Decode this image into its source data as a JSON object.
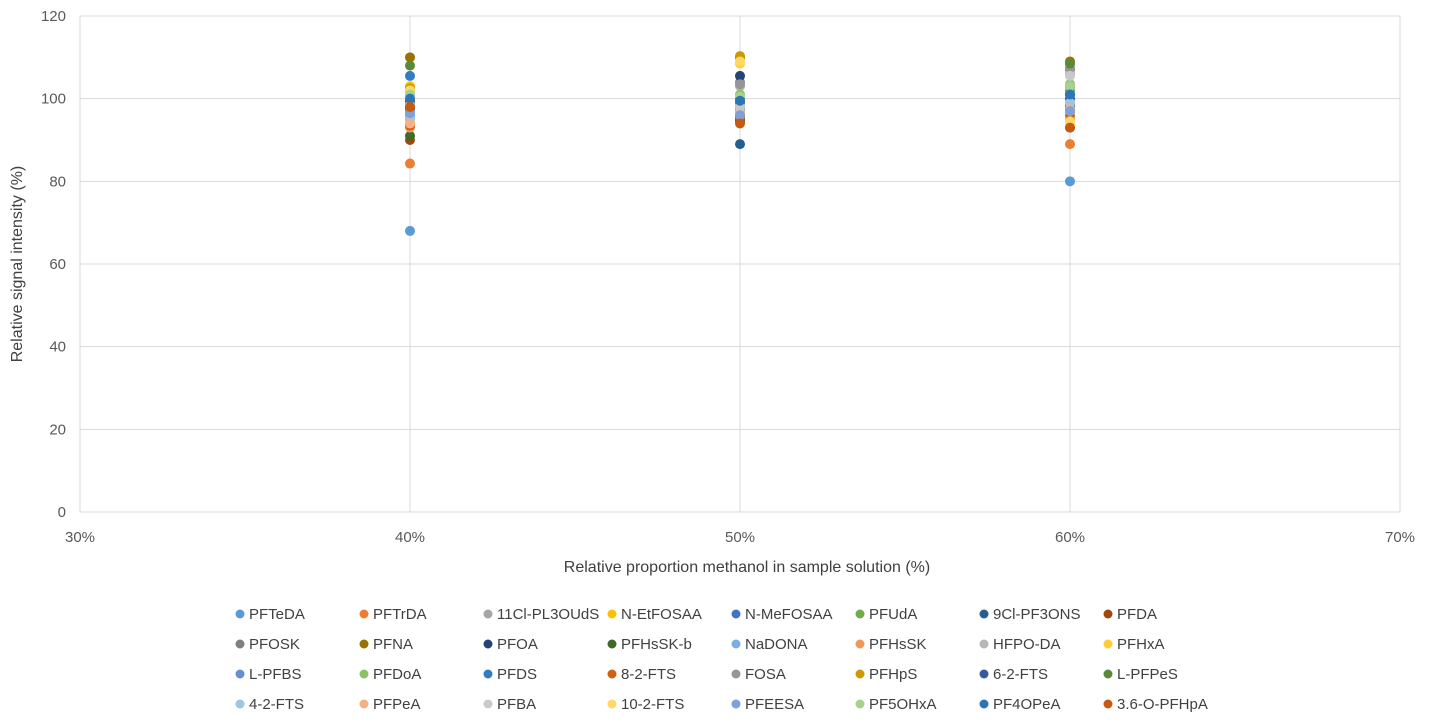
{
  "chart_data": {
    "type": "scatter",
    "title": "",
    "xlabel": "Relative proportion methanol in sample solution (%)",
    "ylabel": "Relative signal intensity (%)",
    "xlim": [
      30,
      70
    ],
    "ylim": [
      0,
      120
    ],
    "x_ticks": [
      30,
      40,
      50,
      60,
      70
    ],
    "x_tick_labels": [
      "30%",
      "40%",
      "50%",
      "60%",
      "70%"
    ],
    "y_ticks": [
      0,
      20,
      40,
      60,
      80,
      100,
      120
    ],
    "y_tick_labels": [
      "0",
      "20",
      "40",
      "60",
      "80",
      "100",
      "120"
    ],
    "grid": "major gridlines on both axes",
    "legend_position": "bottom",
    "x": [
      40,
      50,
      60
    ],
    "series": [
      {
        "name": "PFTeDA",
        "color": "#5B9BD5",
        "values": [
          68,
          97,
          80
        ]
      },
      {
        "name": "PFTrDA",
        "color": "#ED7D31",
        "values": [
          84.3,
          95,
          89
        ]
      },
      {
        "name": "11Cl-PL3OUdS",
        "color": "#A5A5A5",
        "values": [
          96,
          103,
          106
        ]
      },
      {
        "name": "N-EtFOSAA",
        "color": "#FFC000",
        "values": [
          103,
          110,
          103
        ]
      },
      {
        "name": "N-MeFOSAA",
        "color": "#4472C4",
        "values": [
          101,
          99,
          97
        ]
      },
      {
        "name": "PFUdA",
        "color": "#70AD47",
        "values": [
          95,
          100,
          102
        ]
      },
      {
        "name": "9Cl-PF3ONS",
        "color": "#255E91",
        "values": [
          99.5,
          89,
          101
        ]
      },
      {
        "name": "PFDA",
        "color": "#9E480E",
        "values": [
          90,
          94.5,
          93
        ]
      },
      {
        "name": "PFOSK",
        "color": "#7F7F7F",
        "values": [
          98,
          104,
          107
        ]
      },
      {
        "name": "PFNA",
        "color": "#997300",
        "values": [
          110,
          110,
          109
        ]
      },
      {
        "name": "PFOA",
        "color": "#264478",
        "values": [
          97.5,
          105.5,
          101
        ]
      },
      {
        "name": "PFHsSK-b",
        "color": "#43682B",
        "values": [
          91,
          95,
          103
        ]
      },
      {
        "name": "NaDONA",
        "color": "#7CAFDD",
        "values": [
          96,
          98,
          100
        ]
      },
      {
        "name": "PFHsSK",
        "color": "#F1975A",
        "values": [
          93,
          96,
          95
        ]
      },
      {
        "name": "HFPO-DA",
        "color": "#B7B7B7",
        "values": [
          102,
          103,
          106
        ]
      },
      {
        "name": "PFHxA",
        "color": "#FFCD33",
        "values": [
          100,
          108.5,
          94
        ]
      },
      {
        "name": "L-PFBS",
        "color": "#698ED0",
        "values": [
          97,
          96,
          98.5
        ]
      },
      {
        "name": "PFDoA",
        "color": "#8CC168",
        "values": [
          102,
          101,
          103.5
        ]
      },
      {
        "name": "PFDS",
        "color": "#327DC2",
        "values": [
          105.5,
          97.5,
          98
        ]
      },
      {
        "name": "8-2-FTS",
        "color": "#D26012",
        "values": [
          93.5,
          95.5,
          96
        ]
      },
      {
        "name": "FOSA",
        "color": "#969696",
        "values": [
          99,
          103.5,
          107.5
        ]
      },
      {
        "name": "PFHpS",
        "color": "#CC9A00",
        "values": [
          102.5,
          110.3,
          108.5
        ]
      },
      {
        "name": "6-2-FTS",
        "color": "#335AA1",
        "values": [
          99,
          100,
          100
        ]
      },
      {
        "name": "L-PFPeS",
        "color": "#5A8A39",
        "values": [
          108,
          99,
          108.5
        ]
      },
      {
        "name": "4-2-FTS",
        "color": "#9DC3E6",
        "values": [
          95,
          97,
          99
        ]
      },
      {
        "name": "PFPeA",
        "color": "#F4B183",
        "values": [
          94,
          96.5,
          97.5
        ]
      },
      {
        "name": "PFBA",
        "color": "#C9C9C9",
        "values": [
          98.5,
          98,
          105.5
        ]
      },
      {
        "name": "10-2-FTS",
        "color": "#FFD966",
        "values": [
          102,
          109,
          94.5
        ]
      },
      {
        "name": "PFEESA",
        "color": "#7EA1D9",
        "values": [
          96.5,
          96,
          97
        ]
      },
      {
        "name": "PF5OHxA",
        "color": "#A9D18E",
        "values": [
          101,
          100.5,
          103
        ]
      },
      {
        "name": "PF4OPeA",
        "color": "#2E75B6",
        "values": [
          100,
          99.5,
          101
        ]
      },
      {
        "name": "3.6-O-PFHpA",
        "color": "#C55A11",
        "values": [
          98,
          94,
          93
        ]
      }
    ]
  }
}
